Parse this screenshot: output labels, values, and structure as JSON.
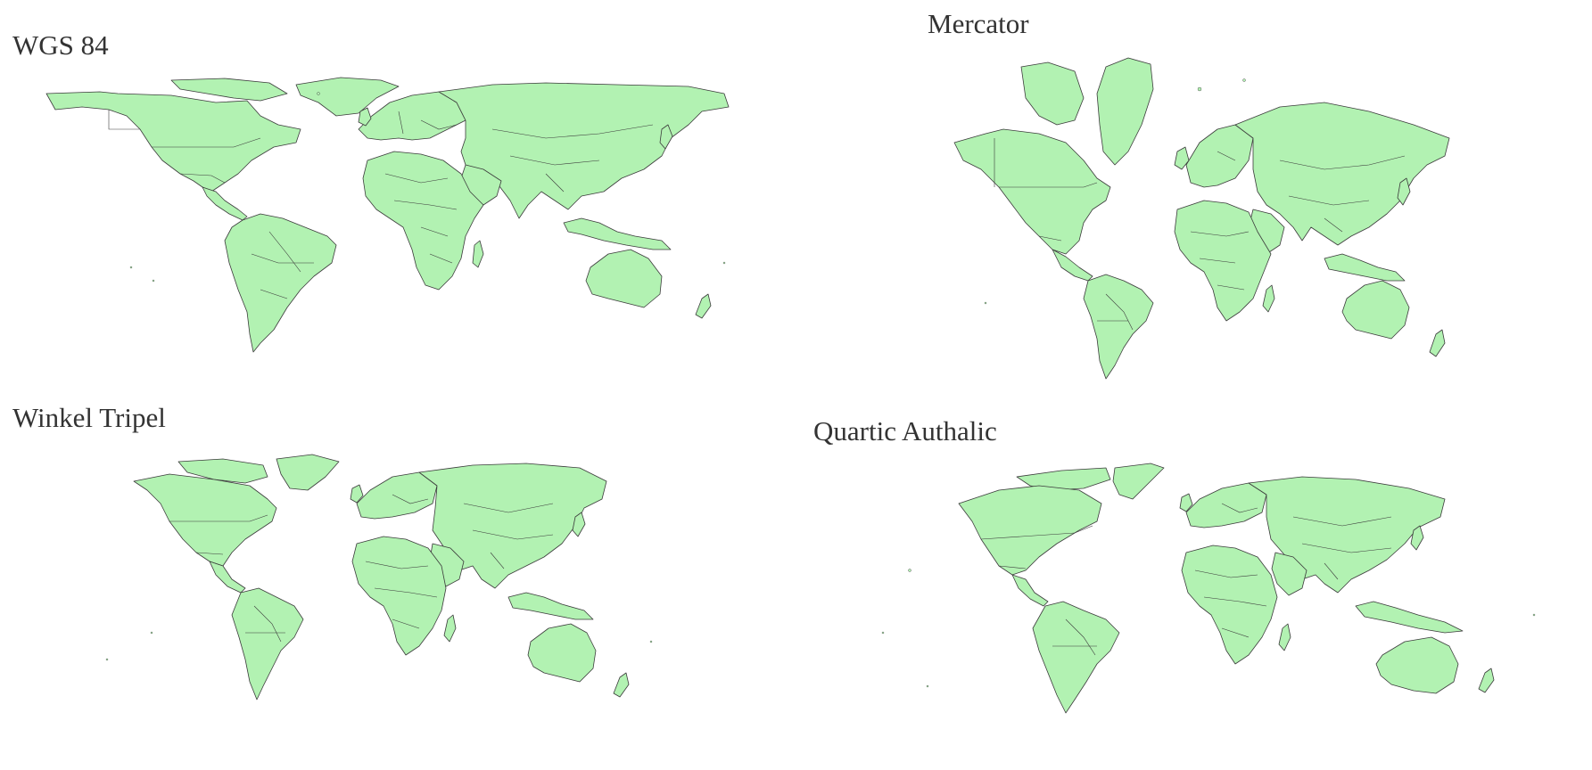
{
  "panels": [
    {
      "id": "wgs84",
      "title": "WGS 84"
    },
    {
      "id": "mercator",
      "title": "Mercator"
    },
    {
      "id": "winkel",
      "title": "Winkel Tripel"
    },
    {
      "id": "quartic",
      "title": "Quartic Authalic"
    }
  ],
  "style": {
    "land_fill": "#b2f2b2",
    "border_stroke": "#3b3b3b",
    "background": "#ffffff",
    "title_color": "#333333"
  }
}
